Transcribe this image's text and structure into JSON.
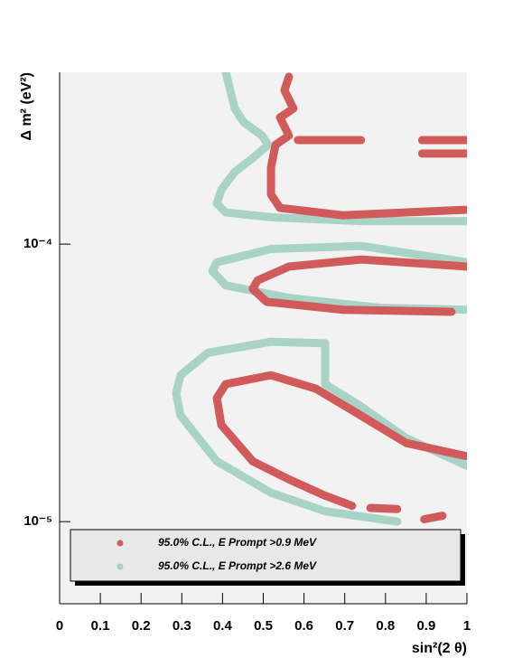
{
  "chart_data": {
    "type": "line",
    "xlabel": "sin²(2 θ)",
    "ylabel": "Δ m² (eV²)",
    "xlim": [
      0,
      1
    ],
    "ylim": [
      5.06e-06,
      0.000416
    ],
    "ylog": true,
    "xticks": [
      0,
      0.1,
      0.2,
      0.3,
      0.4,
      0.5,
      0.6,
      0.7,
      0.8,
      0.9,
      1
    ],
    "yticks": [
      {
        "value": 1e-05,
        "label": "10⁻⁵"
      },
      {
        "value": 0.0001,
        "label": "10⁻⁴"
      }
    ],
    "legend": "bottom",
    "series": [
      {
        "name": "95.0% C.L., E Prompt >2.6 MeV",
        "color": "#a8d3c6",
        "x": [
          0.408,
          0.419,
          0.43,
          0.452,
          0.497,
          0.512,
          0.474,
          0.43,
          0.397,
          0.386,
          0.408,
          0.519,
          0.74,
          1,
          null,
          1,
          0.74,
          0.519,
          0.386,
          0.375,
          0.408,
          0.563,
          0.785,
          1,
          null,
          1,
          0.851,
          0.74,
          0.652,
          0.652,
          0.519,
          0.364,
          0.297,
          0.286,
          0.297,
          0.386,
          0.519,
          0.652,
          0.829
        ],
        "values": [
          0.000416,
          0.000358,
          0.000308,
          0.000275,
          0.000246,
          0.000228,
          0.000204,
          0.000182,
          0.000157,
          0.00014,
          0.00013,
          0.000125,
          0.000121,
          0.000121,
          null,
          8.6e-05,
          9.85e-05,
          9.6e-05,
          8.6e-05,
          8e-05,
          7.1e-05,
          6.4e-05,
          5.9e-05,
          5.8e-05,
          null,
          1.59e-05,
          2e-05,
          2.6e-05,
          3.13e-05,
          4.39e-05,
          4.45e-05,
          4.06e-05,
          3.37e-05,
          2.9e-05,
          2.41e-05,
          1.65e-05,
          1.27e-05,
          1.09e-05,
          1e-05
        ]
      },
      {
        "name": "95.0% C.L., E Prompt >0.9 MeV",
        "color": "#d15b5b",
        "x": [
          0.563,
          0.552,
          0.574,
          0.541,
          0.563,
          0.53,
          0.519,
          0.519,
          0.541,
          0.696,
          1,
          null,
          0.585,
          0.74,
          null,
          0.89,
          1,
          null,
          0.89,
          1,
          null,
          1,
          0.74,
          0.563,
          0.486,
          0.474,
          0.508,
          0.696,
          0.962,
          null,
          1,
          0.851,
          0.74,
          0.63,
          0.519,
          0.408,
          0.386,
          0.397,
          0.474,
          0.563,
          0.652,
          0.718,
          null,
          0.763,
          0.829,
          null,
          0.895,
          0.94
        ],
        "values": [
          0.000401,
          0.000358,
          0.000308,
          0.000286,
          0.000246,
          0.000228,
          0.000189,
          0.000151,
          0.000135,
          0.000127,
          0.000133,
          null,
          0.000237,
          0.000237,
          null,
          0.000237,
          0.000237,
          null,
          0.000212,
          0.000212,
          null,
          8.3e-05,
          8.8e-05,
          8.3e-05,
          7.4e-05,
          6.9e-05,
          6.2e-05,
          5.8e-05,
          5.7e-05,
          null,
          1.72e-05,
          1.92e-05,
          2.41e-05,
          3.01e-05,
          3.37e-05,
          3.13e-05,
          2.79e-05,
          2.23e-05,
          1.65e-05,
          1.42e-05,
          1.24e-05,
          1.14e-05,
          null,
          1.12e-05,
          1.11e-05,
          null,
          1.02e-05,
          1.05e-05
        ]
      }
    ]
  }
}
